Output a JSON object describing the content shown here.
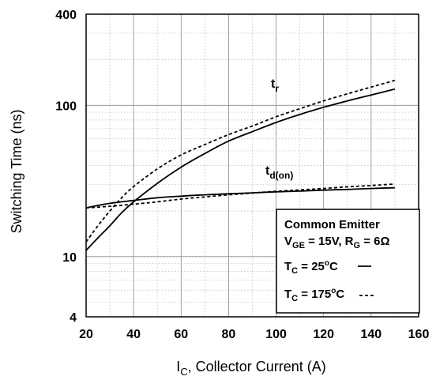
{
  "chart_data": {
    "type": "line",
    "title": "",
    "xlabel_main": "I",
    "xlabel_sub": "C",
    "xlabel_rest": ", Collector Current (A)",
    "ylabel": "Switching Time (ns)",
    "xlim": [
      20,
      160
    ],
    "ylim": [
      4,
      400
    ],
    "yscale": "log",
    "grid": true,
    "x_ticks": [
      "20",
      "40",
      "60",
      "80",
      "100",
      "120",
      "140",
      "160"
    ],
    "y_ticks": [
      {
        "value": 4,
        "label": "4"
      },
      {
        "value": 10,
        "label": "10"
      },
      {
        "value": 100,
        "label": "100"
      },
      {
        "value": 400,
        "label": "400"
      }
    ],
    "curve_labels": [
      {
        "main": "t",
        "sub": "r"
      },
      {
        "main": "t",
        "sub": "d(on)"
      }
    ],
    "series": [
      {
        "curve": "tr",
        "condition": "TC = 25°C",
        "style": "solid",
        "x": [
          20,
          25,
          30,
          35,
          40,
          50,
          60,
          70,
          80,
          90,
          100,
          110,
          120,
          130,
          140,
          150
        ],
        "y": [
          11,
          13.3,
          16,
          19.5,
          23,
          30.5,
          39,
          48,
          58,
          67,
          77,
          87,
          97,
          107,
          117,
          128
        ]
      },
      {
        "curve": "tr",
        "condition": "TC = 175°C",
        "style": "dashed",
        "x": [
          20,
          25,
          30,
          35,
          40,
          50,
          60,
          70,
          80,
          90,
          100,
          110,
          120,
          130,
          140,
          150
        ],
        "y": [
          12.5,
          16,
          20,
          24.5,
          29,
          38,
          47,
          55,
          64,
          73,
          84,
          95,
          107,
          119,
          132,
          146
        ]
      },
      {
        "curve": "td(on)",
        "condition": "TC = 25°C",
        "style": "solid",
        "x": [
          20,
          30,
          40,
          50,
          60,
          70,
          80,
          90,
          100,
          110,
          120,
          130,
          140,
          150
        ],
        "y": [
          21,
          22.5,
          23.5,
          24.5,
          25.1,
          25.6,
          26,
          26.4,
          26.8,
          27.1,
          27.5,
          27.8,
          28.2,
          28.5
        ]
      },
      {
        "curve": "td(on)",
        "condition": "TC = 175°C",
        "style": "dashed",
        "x": [
          20,
          30,
          40,
          50,
          60,
          70,
          80,
          90,
          100,
          110,
          120,
          130,
          140,
          150
        ],
        "y": [
          21,
          21.5,
          22.2,
          23,
          24,
          24.8,
          25.6,
          26.3,
          27,
          27.6,
          28.2,
          28.9,
          29.5,
          30.2
        ]
      }
    ],
    "legend": {
      "placement": "bottom-right",
      "title": "Common Emitter",
      "vge_main": "V",
      "vge_sub": "GE",
      "vge_rest": " = 15V, R",
      "rg_sub": "G",
      "rg_rest": " = 6Ω",
      "entries": [
        {
          "main": "T",
          "sub": "C",
          "rest": " = 25",
          "sup": "o",
          "unit": "C",
          "style": "solid"
        },
        {
          "main": "T",
          "sub": "C",
          "rest": " = 175",
          "sup": "o",
          "unit": "C",
          "style": "dashed"
        }
      ]
    }
  }
}
